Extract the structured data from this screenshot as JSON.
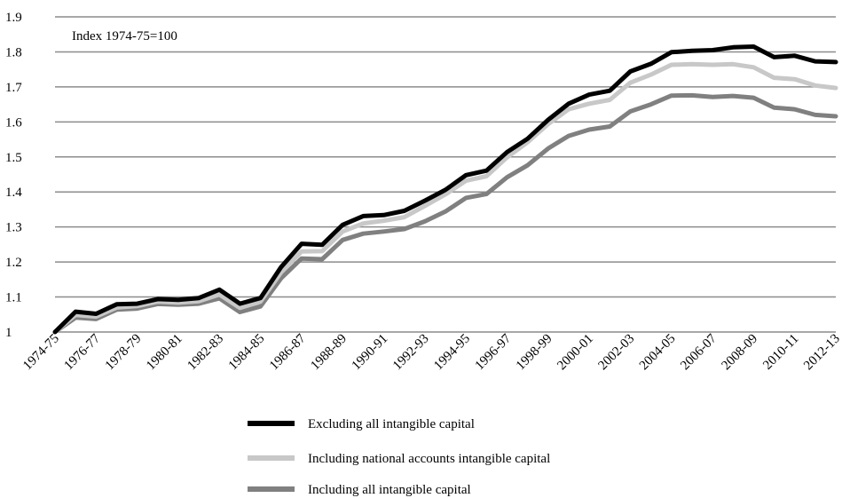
{
  "chart_data": {
    "type": "line",
    "title": "",
    "xlabel": "",
    "ylabel": "",
    "annotation": "Index 1974-75=100",
    "ylim": [
      1,
      1.9
    ],
    "yticks": [
      "1",
      "1.1",
      "1.2",
      "1.3",
      "1.4",
      "1.5",
      "1.6",
      "1.7",
      "1.8",
      "1.9"
    ],
    "grid": true,
    "legend_position": "bottom",
    "categories": [
      "1974-75",
      "1975-76",
      "1976-77",
      "1977-78",
      "1978-79",
      "1979-80",
      "1980-81",
      "1981-82",
      "1982-83",
      "1983-84",
      "1984-85",
      "1985-86",
      "1986-87",
      "1987-88",
      "1988-89",
      "1989-90",
      "1990-91",
      "1991-92",
      "1992-93",
      "1993-94",
      "1994-95",
      "1995-96",
      "1996-97",
      "1997-98",
      "1998-99",
      "1999-00",
      "2000-01",
      "2001-02",
      "2002-03",
      "2003-04",
      "2004-05",
      "2005-06",
      "2006-07",
      "2007-08",
      "2008-09",
      "2009-10",
      "2010-11",
      "2011-12",
      "2012-13"
    ],
    "xtick_labels": [
      "1974-75",
      "1976-77",
      "1978-79",
      "1980-81",
      "1982-83",
      "1984-85",
      "1986-87",
      "1988-89",
      "1990-91",
      "1992-93",
      "1994-95",
      "1996-97",
      "1998-99",
      "2000-01",
      "2002-03",
      "2004-05",
      "2006-07",
      "2008-09",
      "2010-11",
      "2012-13"
    ],
    "series": [
      {
        "name": "Excluding all intangible capital",
        "color": "#000000",
        "values": [
          1.0,
          1.058,
          1.052,
          1.079,
          1.081,
          1.094,
          1.092,
          1.097,
          1.121,
          1.081,
          1.097,
          1.185,
          1.252,
          1.249,
          1.306,
          1.331,
          1.334,
          1.346,
          1.375,
          1.406,
          1.448,
          1.461,
          1.514,
          1.552,
          1.606,
          1.652,
          1.678,
          1.689,
          1.744,
          1.766,
          1.799,
          1.803,
          1.805,
          1.813,
          1.815,
          1.785,
          1.789,
          1.773,
          1.771
        ]
      },
      {
        "name": "Including national accounts intangible capital",
        "color": "#c8c8c8",
        "values": [
          1.0,
          1.049,
          1.044,
          1.07,
          1.074,
          1.087,
          1.084,
          1.088,
          1.107,
          1.069,
          1.087,
          1.17,
          1.23,
          1.231,
          1.287,
          1.31,
          1.318,
          1.328,
          1.36,
          1.393,
          1.432,
          1.445,
          1.499,
          1.542,
          1.594,
          1.636,
          1.652,
          1.663,
          1.712,
          1.735,
          1.763,
          1.765,
          1.763,
          1.765,
          1.756,
          1.726,
          1.722,
          1.704,
          1.697
        ]
      },
      {
        "name": "Including all intangible capital",
        "color": "#808080",
        "values": [
          1.0,
          1.041,
          1.037,
          1.064,
          1.067,
          1.08,
          1.078,
          1.081,
          1.096,
          1.057,
          1.073,
          1.153,
          1.21,
          1.208,
          1.263,
          1.281,
          1.287,
          1.294,
          1.316,
          1.344,
          1.383,
          1.394,
          1.442,
          1.476,
          1.524,
          1.56,
          1.578,
          1.587,
          1.63,
          1.65,
          1.675,
          1.676,
          1.671,
          1.674,
          1.669,
          1.641,
          1.636,
          1.62,
          1.616
        ]
      }
    ]
  }
}
